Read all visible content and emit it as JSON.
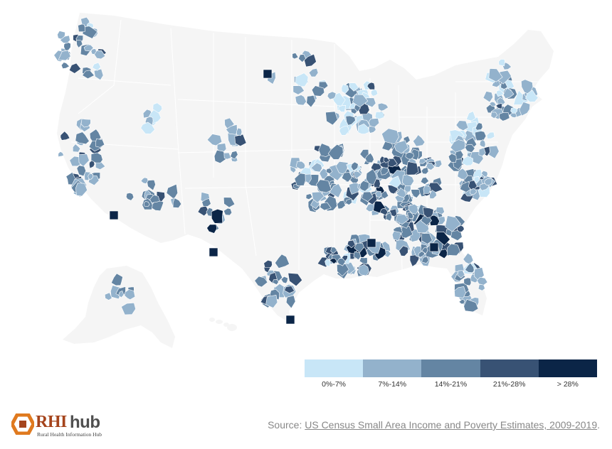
{
  "map": {
    "background_color": "#f5f5f5",
    "border_color": "#ffffff",
    "no_data_color": "#f5f5f5"
  },
  "legend": {
    "items": [
      {
        "label": "0%-7%",
        "color": "#c8e6f7"
      },
      {
        "label": "7%-14%",
        "color": "#93b2cc"
      },
      {
        "label": "14%-21%",
        "color": "#6485a3"
      },
      {
        "label": "21%-28%",
        "color": "#385274"
      },
      {
        "label": "> 28%",
        "color": "#0b2547"
      }
    ]
  },
  "source": {
    "prefix": "Source: ",
    "link_text": "US Census Small Area Income and Poverty Estimates, 2009-2019",
    "suffix": "."
  },
  "logo": {
    "main_left": "RHI",
    "main_right": "hub",
    "subtitle": "Rural Health Information Hub",
    "accent_color": "#e07a1f"
  }
}
